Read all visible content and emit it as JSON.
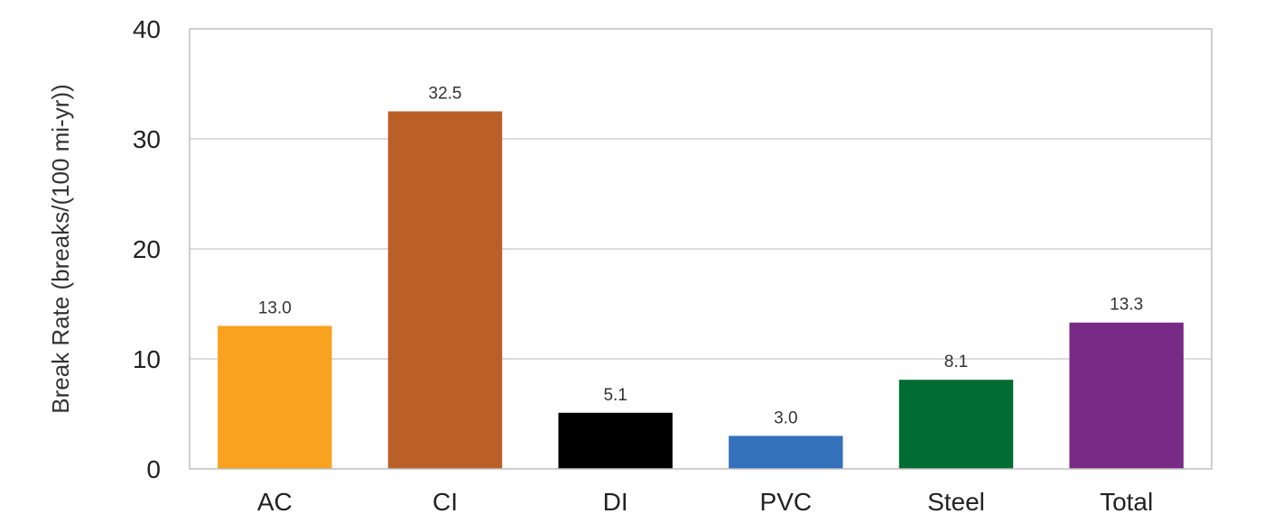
{
  "chart_data": {
    "type": "bar",
    "title": "",
    "xlabel": "",
    "ylabel": "Break Rate (breaks/(100 mi-yr))",
    "ylim": [
      0,
      40
    ],
    "yticks": [
      0,
      10,
      20,
      30,
      40
    ],
    "grid": true,
    "categories": [
      "AC",
      "CI",
      "DI",
      "PVC",
      "Steel",
      "Total"
    ],
    "values": [
      13.0,
      32.5,
      5.1,
      3.0,
      8.1,
      13.3
    ],
    "value_labels": [
      "13.0",
      "32.5",
      "5.1",
      "3.0",
      "8.1",
      "13.3"
    ],
    "colors": [
      "#F9A21F",
      "#BA5F28",
      "#000000",
      "#3470BC",
      "#016C32",
      "#782A87"
    ]
  }
}
